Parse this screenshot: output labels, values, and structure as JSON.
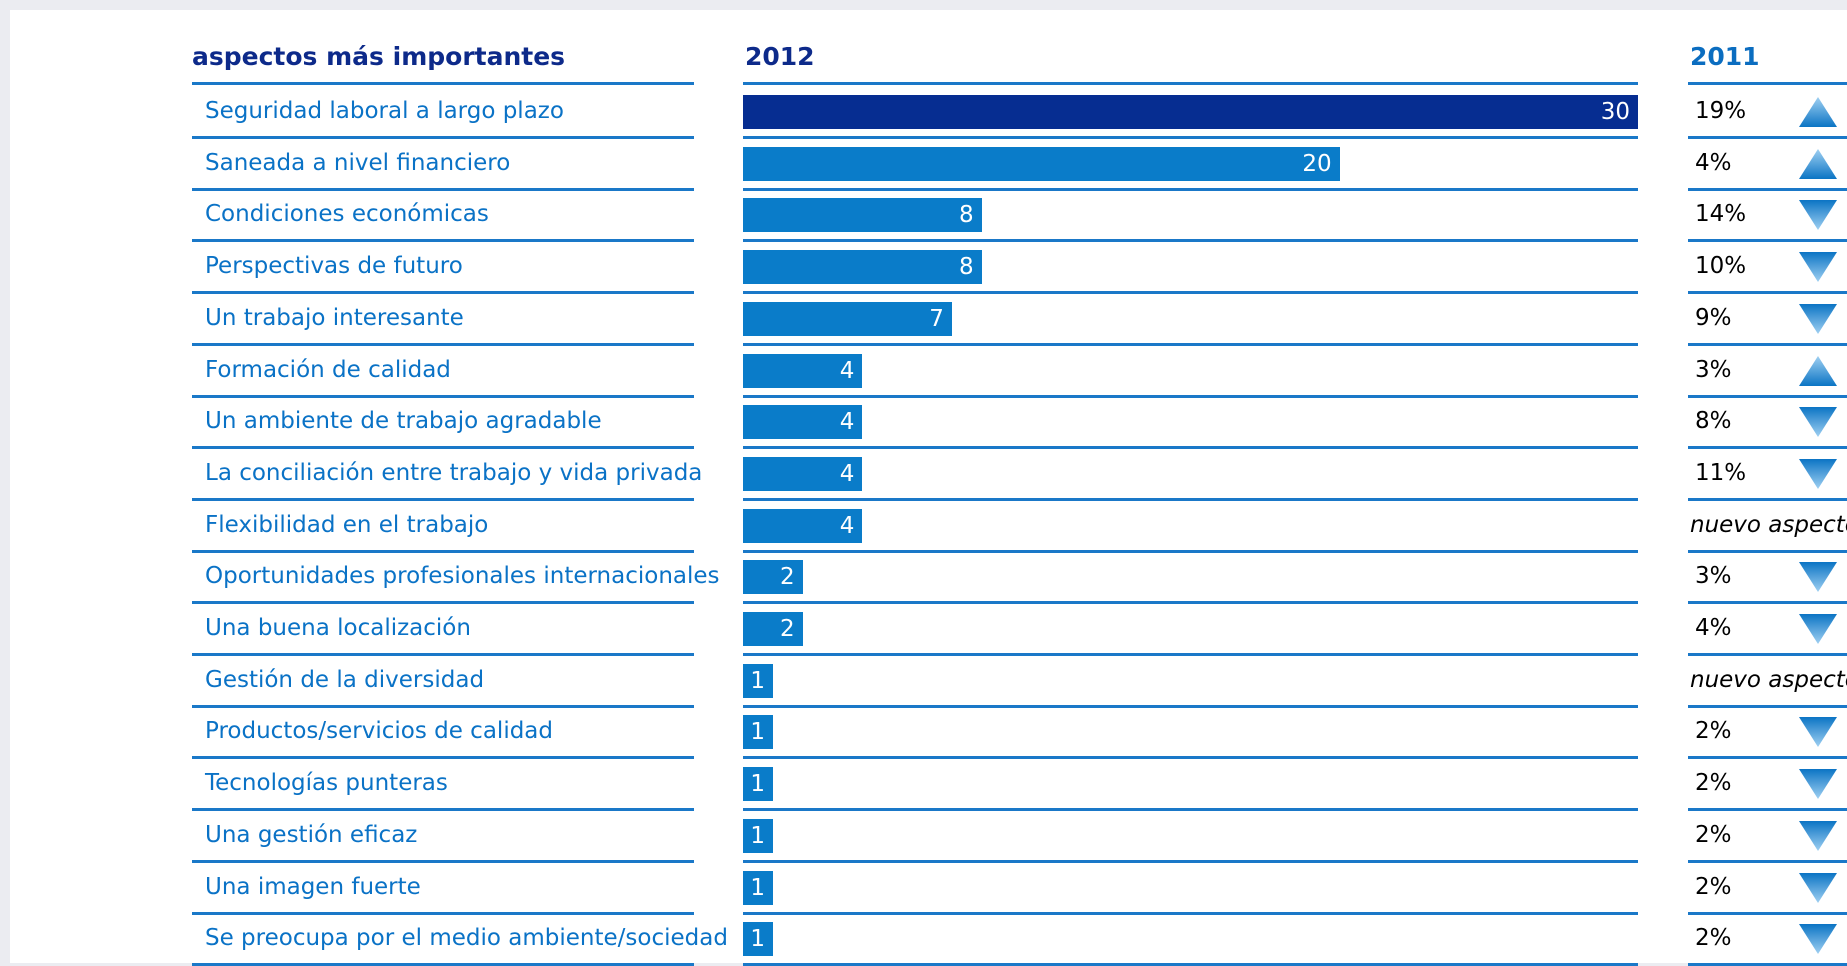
{
  "headers": {
    "aspects": "aspectos más importantes",
    "year_2012": "2012",
    "year_2011": "2011"
  },
  "colors": {
    "top_bar": "#062d91",
    "bar": "#0a7cc9",
    "rule": "#1a78c8",
    "label": "#0a72c6",
    "header": "#0d2a8a",
    "header_2011": "#0b6dc0"
  },
  "chart_data": {
    "type": "bar",
    "orientation": "horizontal",
    "categories": [
      "Seguridad laboral a largo plazo",
      "Saneada a nivel financiero",
      "Condiciones económicas",
      "Perspectivas de futuro",
      "Un trabajo interesante",
      "Formación de calidad",
      "Un ambiente de trabajo agradable",
      "La conciliación entre trabajo y vida privada",
      "Flexibilidad en el trabajo",
      "Oportunidades profesionales internacionales",
      "Una buena localización",
      "Gestión de la diversidad",
      "Productos/servicios de calidad",
      "Tecnologías punteras",
      "Una gestión eficaz",
      "Una imagen fuerte",
      "Se preocupa por el medio ambiente/sociedad"
    ],
    "values": [
      30,
      20,
      8,
      8,
      7,
      4,
      4,
      4,
      4,
      2,
      2,
      1,
      1,
      1,
      1,
      1,
      1
    ],
    "xlim": [
      0,
      30
    ],
    "comparison_2011": [
      "19%",
      "4%",
      "14%",
      "10%",
      "9%",
      "3%",
      "8%",
      "11%",
      "nuevo aspecto",
      "3%",
      "4%",
      "nuevo aspecto",
      "2%",
      "2%",
      "2%",
      "2%",
      "2%"
    ],
    "trend": [
      "up",
      "up",
      "down",
      "down",
      "down",
      "up",
      "down",
      "down",
      "none",
      "down",
      "down",
      "none",
      "down",
      "down",
      "down",
      "down",
      "down"
    ],
    "trend_icons": {
      "up": "triangle-up-icon",
      "down": "triangle-down-icon"
    }
  }
}
